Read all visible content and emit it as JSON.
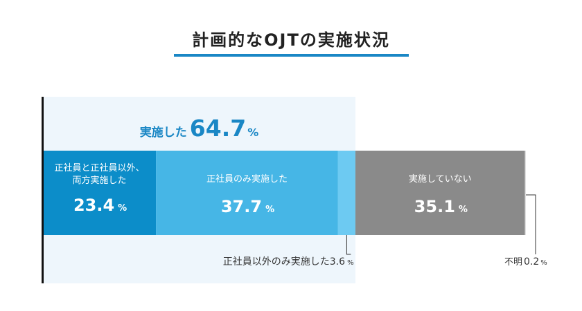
{
  "title": "計画的なOJTの実施状況",
  "summary": {
    "label": "実施した",
    "value": "64.7",
    "unit": "%"
  },
  "colors": {
    "accent": "#1a87c5",
    "panel": "#eef6fc",
    "seg1": "#0c8dc9",
    "seg2": "#46b6e6",
    "seg3": "#6dcaf2",
    "seg4": "#8a8a8a",
    "seg5": "#e0e0e0"
  },
  "chart_data": {
    "type": "bar",
    "orientation": "horizontal-stacked",
    "unit": "%",
    "segments": [
      {
        "label_lines": [
          "正社員と正社員以外、",
          "両方実施した"
        ],
        "value": 23.4,
        "value_text": "23.4",
        "color": "#0c8dc9"
      },
      {
        "label_lines": [
          "正社員のみ実施した"
        ],
        "value": 37.7,
        "value_text": "37.7",
        "color": "#46b6e6"
      },
      {
        "label_lines": [
          "正社員以外のみ実施した"
        ],
        "value": 3.6,
        "value_text": "3.6",
        "color": "#6dcaf2",
        "callout": true
      },
      {
        "label_lines": [
          "実施していない"
        ],
        "value": 35.1,
        "value_text": "35.1",
        "color": "#8a8a8a"
      },
      {
        "label_lines": [
          "不明"
        ],
        "value": 0.2,
        "value_text": "0.2",
        "color": "#e0e0e0",
        "callout": true
      }
    ]
  }
}
